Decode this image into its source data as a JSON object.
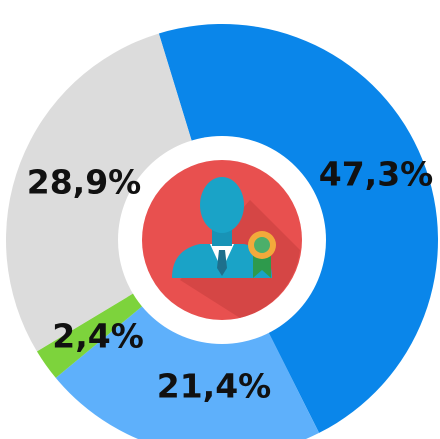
{
  "chart_data": {
    "type": "pie",
    "values": [
      47.3,
      21.4,
      2.4,
      28.9
    ],
    "value_labels": [
      "47,3%",
      "21,4%",
      "2,4%",
      "28,9%"
    ],
    "colors": [
      "#0a86ea",
      "#5eb0fb",
      "#7dd33c",
      "#dcdcdc"
    ]
  }
}
